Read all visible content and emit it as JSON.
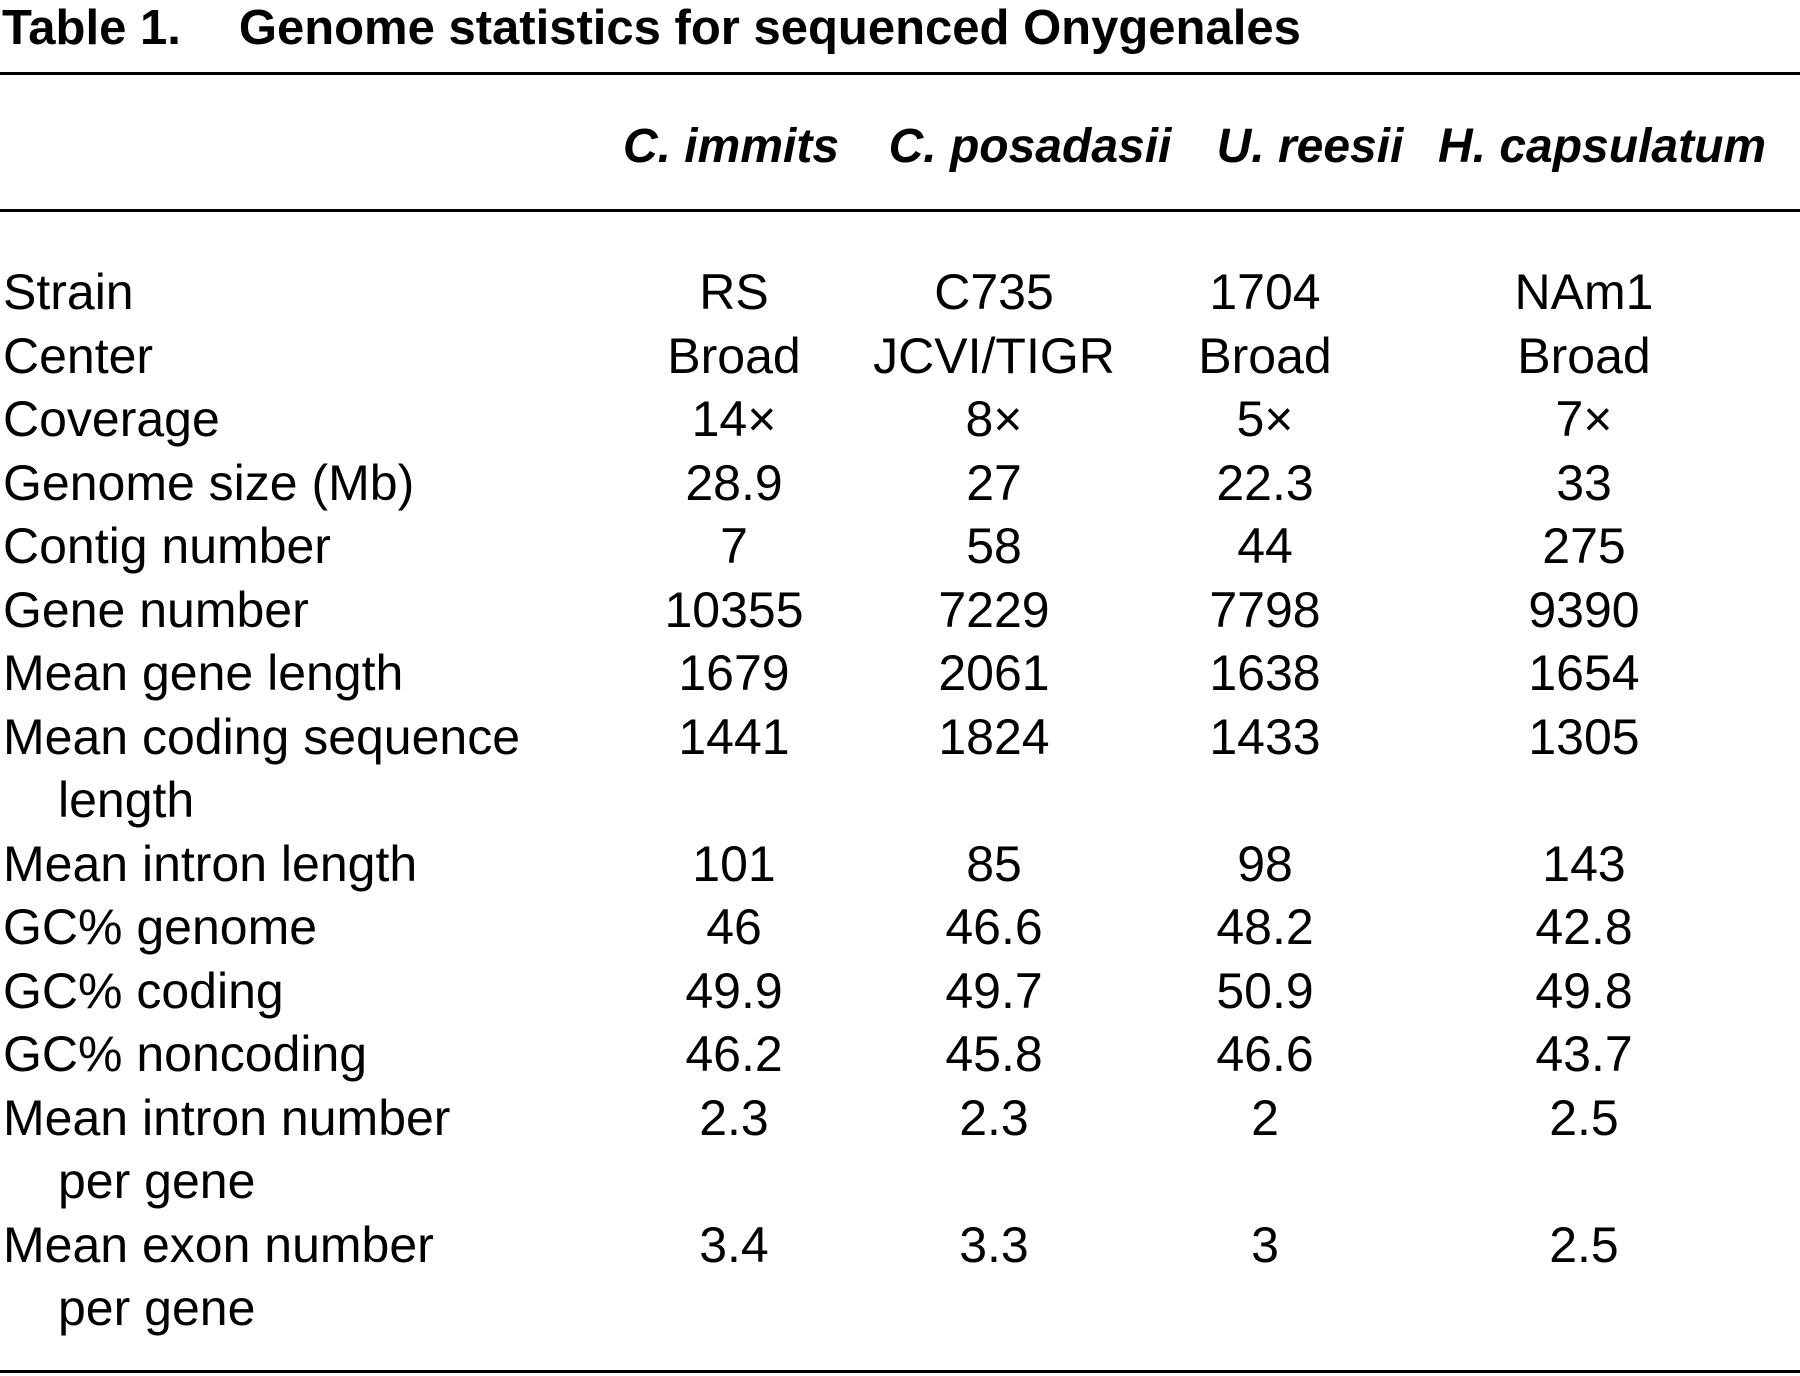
{
  "caption": {
    "label": "Table 1.",
    "title": "Genome statistics for sequenced Onygenales"
  },
  "columns": [
    "C. immits",
    "C. posadasii",
    "U. reesii",
    "H. capsulatum"
  ],
  "rows": [
    {
      "label": [
        "Strain"
      ],
      "values": [
        "RS",
        "C735",
        "1704",
        "NAm1"
      ]
    },
    {
      "label": [
        "Center"
      ],
      "values": [
        "Broad",
        "JCVI/TIGR",
        "Broad",
        "Broad"
      ]
    },
    {
      "label": [
        "Coverage"
      ],
      "values": [
        "14×",
        "8×",
        "5×",
        "7×"
      ]
    },
    {
      "label": [
        "Genome size (Mb)"
      ],
      "values": [
        "28.9",
        "27",
        "22.3",
        "33"
      ]
    },
    {
      "label": [
        "Contig number"
      ],
      "values": [
        "7",
        "58",
        "44",
        "275"
      ]
    },
    {
      "label": [
        "Gene number"
      ],
      "values": [
        "10355",
        "7229",
        "7798",
        "9390"
      ]
    },
    {
      "label": [
        "Mean gene length"
      ],
      "values": [
        "1679",
        "2061",
        "1638",
        "1654"
      ]
    },
    {
      "label": [
        "Mean coding sequence",
        "length"
      ],
      "values": [
        "1441",
        "1824",
        "1433",
        "1305"
      ]
    },
    {
      "label": [
        "Mean intron length"
      ],
      "values": [
        "101",
        "85",
        "98",
        "143"
      ]
    },
    {
      "label": [
        "GC% genome"
      ],
      "values": [
        "46",
        "46.6",
        "48.2",
        "42.8"
      ]
    },
    {
      "label": [
        "GC% coding"
      ],
      "values": [
        "49.9",
        "49.7",
        "50.9",
        "49.8"
      ]
    },
    {
      "label": [
        "GC% noncoding"
      ],
      "values": [
        "46.2",
        "45.8",
        "46.6",
        "43.7"
      ]
    },
    {
      "label": [
        "Mean intron number",
        "per gene"
      ],
      "values": [
        "2.3",
        "2.3",
        "2",
        "2.5"
      ]
    },
    {
      "label": [
        "Mean exon number",
        "per gene"
      ],
      "values": [
        "3.4",
        "3.3",
        "3",
        "2.5"
      ]
    }
  ]
}
